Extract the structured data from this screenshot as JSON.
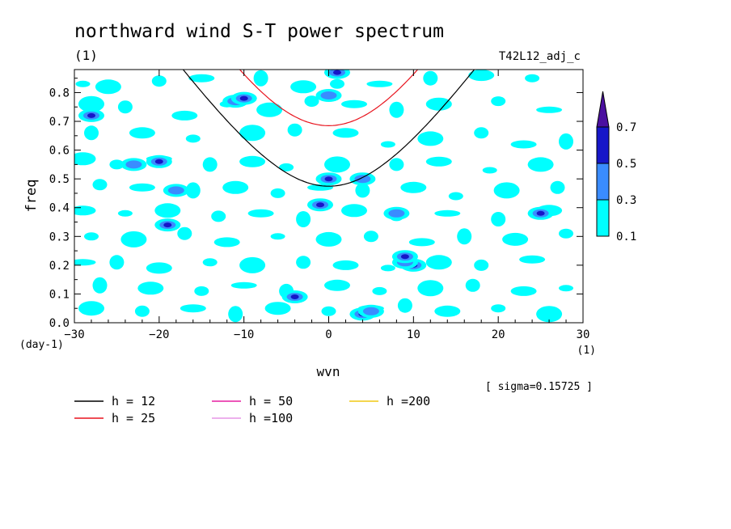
{
  "title": "northward wind S-T power spectrum",
  "units_label": "(1)",
  "run_label": "T42L12_adj_c",
  "sigma_label": "[ sigma=0.15725 ]",
  "chart_data": {
    "type": "heatmap",
    "xlabel": "wvn",
    "ylabel": "freq",
    "x_unit_label": "(1)",
    "y_unit_label": "(day-1)",
    "xlim": [
      -30,
      30
    ],
    "ylim": [
      0,
      0.88
    ],
    "x_ticks": [
      -30,
      -20,
      -10,
      0,
      10,
      20,
      30
    ],
    "x_tick_labels": [
      "−30",
      "−20",
      "−10",
      "0",
      "10",
      "20",
      "30"
    ],
    "y_ticks": [
      0.0,
      0.1,
      0.2,
      0.3,
      0.4,
      0.5,
      0.6,
      0.7,
      0.8
    ],
    "y_tick_labels": [
      "0.0",
      "0.1",
      "0.2",
      "0.3",
      "0.4",
      "0.5",
      "0.6",
      "0.7",
      "0.8"
    ],
    "colorbar": {
      "levels": [
        0.1,
        0.3,
        0.5,
        0.7
      ],
      "level_labels": [
        "0.1",
        "0.3",
        "0.5",
        "0.7"
      ],
      "colors": [
        "#00ffff",
        "#3a8cff",
        "#1616c8",
        "#4b0fa0"
      ],
      "extend": "max"
    },
    "peaks": [
      {
        "x": 4,
        "y": 0.03,
        "level": 0.5
      },
      {
        "x": 5,
        "y": 0.04,
        "level": 0.3
      },
      {
        "x": -4,
        "y": 0.09,
        "level": 0.5
      },
      {
        "x": -1,
        "y": 0.41,
        "level": 0.5
      },
      {
        "x": 0,
        "y": 0.5,
        "level": 0.5
      },
      {
        "x": 10,
        "y": 0.2,
        "level": 0.5
      },
      {
        "x": 9,
        "y": 0.21,
        "level": 0.3
      },
      {
        "x": -19,
        "y": 0.34,
        "level": 0.5
      },
      {
        "x": -23,
        "y": 0.55,
        "level": 0.3
      },
      {
        "x": -20,
        "y": 0.56,
        "level": 0.5
      },
      {
        "x": -28,
        "y": 0.72,
        "level": 0.5
      },
      {
        "x": -11,
        "y": 0.77,
        "level": 0.3
      },
      {
        "x": -10,
        "y": 0.78,
        "level": 0.5
      },
      {
        "x": 0,
        "y": 0.79,
        "level": 0.3
      },
      {
        "x": 1,
        "y": 0.87,
        "level": 0.5
      },
      {
        "x": 9,
        "y": 0.23,
        "level": 0.5
      },
      {
        "x": 25,
        "y": 0.38,
        "level": 0.5
      },
      {
        "x": 4,
        "y": 0.5,
        "level": 0.3
      },
      {
        "x": 8,
        "y": 0.38,
        "level": 0.3
      },
      {
        "x": -18,
        "y": 0.46,
        "level": 0.3
      }
    ],
    "cyan_patches": [
      [
        -29,
        0.83
      ],
      [
        -26,
        0.82
      ],
      [
        -20,
        0.84
      ],
      [
        -15,
        0.85
      ],
      [
        -8,
        0.85
      ],
      [
        -3,
        0.82
      ],
      [
        1,
        0.83
      ],
      [
        6,
        0.83
      ],
      [
        12,
        0.85
      ],
      [
        18,
        0.86
      ],
      [
        24,
        0.85
      ],
      [
        -28,
        0.76
      ],
      [
        -24,
        0.75
      ],
      [
        -17,
        0.72
      ],
      [
        -12,
        0.76
      ],
      [
        -7,
        0.74
      ],
      [
        -2,
        0.77
      ],
      [
        3,
        0.76
      ],
      [
        8,
        0.74
      ],
      [
        13,
        0.76
      ],
      [
        20,
        0.77
      ],
      [
        26,
        0.74
      ],
      [
        -28,
        0.66
      ],
      [
        -22,
        0.66
      ],
      [
        -16,
        0.64
      ],
      [
        -9,
        0.66
      ],
      [
        -4,
        0.67
      ],
      [
        2,
        0.66
      ],
      [
        7,
        0.62
      ],
      [
        12,
        0.64
      ],
      [
        18,
        0.66
      ],
      [
        23,
        0.62
      ],
      [
        28,
        0.63
      ],
      [
        -29,
        0.57
      ],
      [
        -25,
        0.55
      ],
      [
        -20,
        0.57
      ],
      [
        -14,
        0.55
      ],
      [
        -9,
        0.56
      ],
      [
        -5,
        0.54
      ],
      [
        1,
        0.55
      ],
      [
        8,
        0.55
      ],
      [
        13,
        0.56
      ],
      [
        19,
        0.53
      ],
      [
        25,
        0.55
      ],
      [
        -27,
        0.48
      ],
      [
        -22,
        0.47
      ],
      [
        -16,
        0.46
      ],
      [
        -11,
        0.47
      ],
      [
        -6,
        0.45
      ],
      [
        -1,
        0.47
      ],
      [
        4,
        0.46
      ],
      [
        10,
        0.47
      ],
      [
        15,
        0.44
      ],
      [
        21,
        0.46
      ],
      [
        27,
        0.47
      ],
      [
        -29,
        0.39
      ],
      [
        -24,
        0.38
      ],
      [
        -19,
        0.39
      ],
      [
        -13,
        0.37
      ],
      [
        -8,
        0.38
      ],
      [
        -3,
        0.36
      ],
      [
        3,
        0.39
      ],
      [
        8,
        0.37
      ],
      [
        14,
        0.38
      ],
      [
        20,
        0.36
      ],
      [
        26,
        0.39
      ],
      [
        -28,
        0.3
      ],
      [
        -23,
        0.29
      ],
      [
        -17,
        0.31
      ],
      [
        -12,
        0.28
      ],
      [
        -6,
        0.3
      ],
      [
        0,
        0.29
      ],
      [
        5,
        0.3
      ],
      [
        11,
        0.28
      ],
      [
        16,
        0.3
      ],
      [
        22,
        0.29
      ],
      [
        28,
        0.31
      ],
      [
        -29,
        0.21
      ],
      [
        -25,
        0.21
      ],
      [
        -20,
        0.19
      ],
      [
        -14,
        0.21
      ],
      [
        -9,
        0.2
      ],
      [
        -3,
        0.21
      ],
      [
        2,
        0.2
      ],
      [
        7,
        0.19
      ],
      [
        13,
        0.21
      ],
      [
        18,
        0.2
      ],
      [
        24,
        0.22
      ],
      [
        -27,
        0.13
      ],
      [
        -21,
        0.12
      ],
      [
        -15,
        0.11
      ],
      [
        -10,
        0.13
      ],
      [
        -5,
        0.11
      ],
      [
        1,
        0.13
      ],
      [
        6,
        0.11
      ],
      [
        12,
        0.12
      ],
      [
        17,
        0.13
      ],
      [
        23,
        0.11
      ],
      [
        28,
        0.12
      ],
      [
        -28,
        0.05
      ],
      [
        -22,
        0.04
      ],
      [
        -16,
        0.05
      ],
      [
        -11,
        0.03
      ],
      [
        -6,
        0.05
      ],
      [
        0,
        0.04
      ],
      [
        5,
        0.05
      ],
      [
        9,
        0.06
      ],
      [
        14,
        0.04
      ],
      [
        20,
        0.05
      ],
      [
        26,
        0.03
      ]
    ],
    "dispersion_curves": [
      {
        "name": "h = 12",
        "h": 12,
        "color": "#000000"
      },
      {
        "name": "h = 25",
        "h": 25,
        "color": "#e8141e"
      },
      {
        "name": "h = 50",
        "h": 50,
        "color": "#e61ea0"
      },
      {
        "name": "h =100",
        "h": 100,
        "color": "#e696e6"
      },
      {
        "name": "h =200",
        "h": 200,
        "color": "#f0c814"
      }
    ]
  }
}
